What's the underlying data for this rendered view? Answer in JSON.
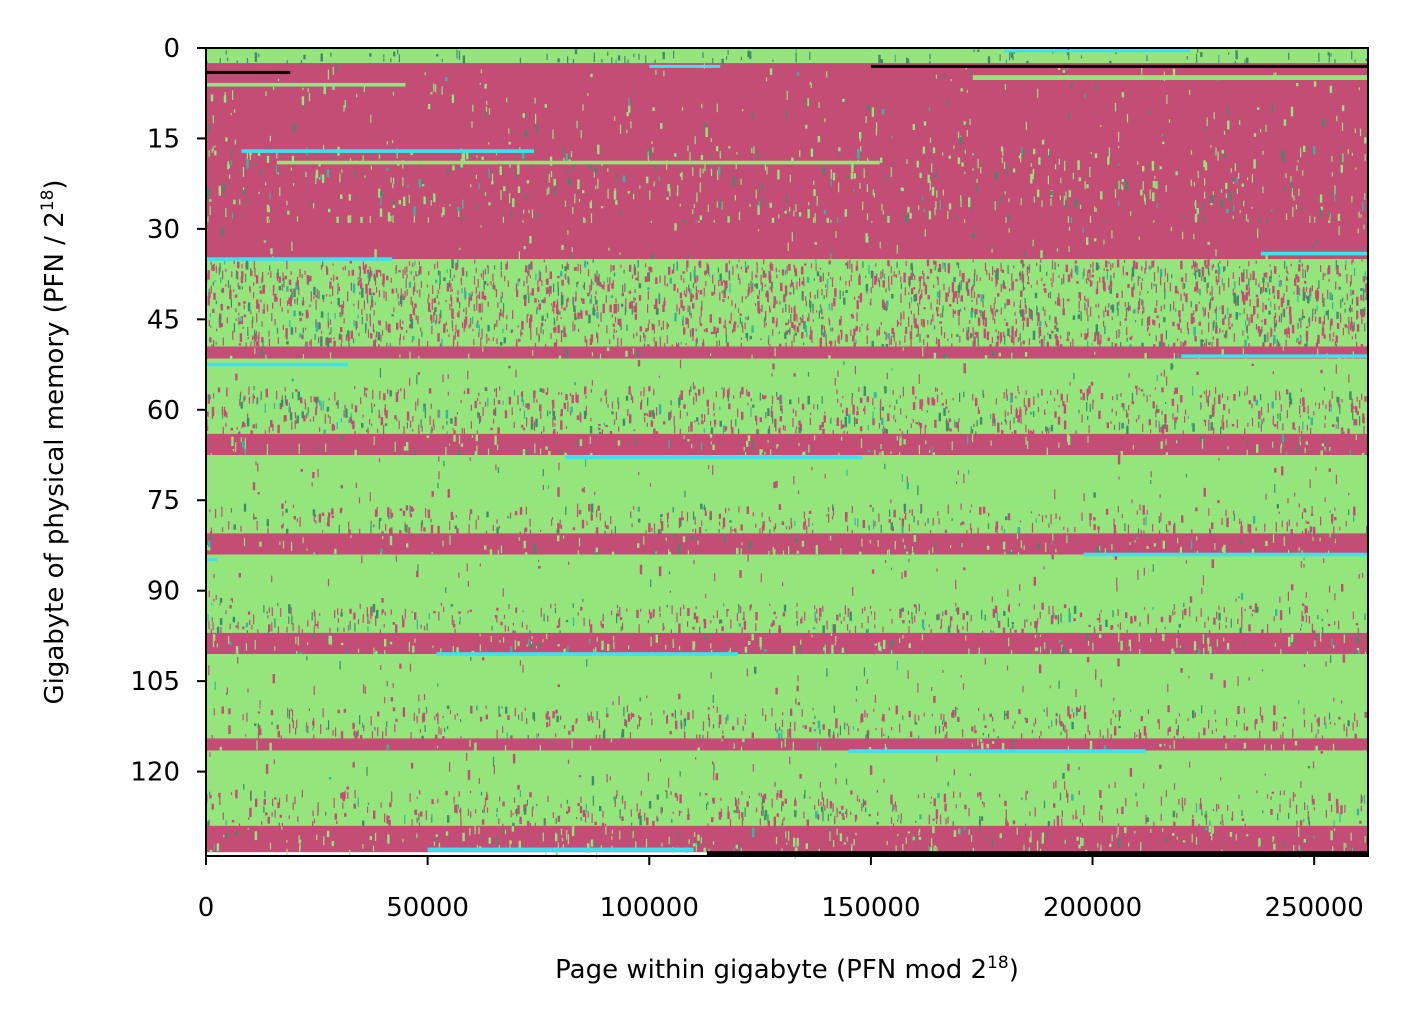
{
  "chart_data": {
    "type": "heatmap",
    "title": "",
    "xlabel": {
      "text": "Page within gigabyte (PFN mod 2",
      "sup": "18",
      "tail": ")"
    },
    "ylabel": {
      "text": "Gigabyte of physical memory (PFN / 2",
      "sup": "18",
      "tail": ")"
    },
    "xlim": [
      0,
      262144
    ],
    "ylim": [
      0,
      134
    ],
    "y_inverted": true,
    "x_ticks": [
      {
        "value": 0,
        "label": "0"
      },
      {
        "value": 50000,
        "label": "50000"
      },
      {
        "value": 100000,
        "label": "100000"
      },
      {
        "value": 150000,
        "label": "150000"
      },
      {
        "value": 200000,
        "label": "200000"
      },
      {
        "value": 250000,
        "label": "250000"
      }
    ],
    "y_ticks": [
      {
        "value": 0,
        "label": "0"
      },
      {
        "value": 15,
        "label": "15"
      },
      {
        "value": 30,
        "label": "30"
      },
      {
        "value": 45,
        "label": "45"
      },
      {
        "value": 60,
        "label": "60"
      },
      {
        "value": 75,
        "label": "75"
      },
      {
        "value": 90,
        "label": "90"
      },
      {
        "value": 105,
        "label": "105"
      },
      {
        "value": 120,
        "label": "120"
      }
    ],
    "grid": false,
    "legend": "none",
    "colors": {
      "free": "#93e57c",
      "used": "#c44d76",
      "special": "#3e8c6b",
      "teal": "#33b8a0",
      "cyan": "#3de2f2",
      "reserved": "#000000"
    },
    "pattern_seed": 1337,
    "bands": [
      {
        "y0": 0,
        "y1": 2.5,
        "base": "free",
        "noise": 0.08,
        "noise_color": "special"
      },
      {
        "y0": 2.5,
        "y1": 5.5,
        "base": "used",
        "noise": 0.02,
        "noise_color": "free"
      },
      {
        "y0": 5.5,
        "y1": 16,
        "base": "used",
        "noise": 0.03,
        "noise_color": "free"
      },
      {
        "y0": 16,
        "y1": 29,
        "base": "used",
        "noise": 0.09,
        "noise_color": "free"
      },
      {
        "y0": 29,
        "y1": 35,
        "base": "used",
        "noise": 0.02,
        "noise_color": "free"
      },
      {
        "y0": 35,
        "y1": 49.5,
        "base": "free",
        "noise": 0.32,
        "noise_color": "used"
      },
      {
        "y0": 49.5,
        "y1": 51.5,
        "base": "used",
        "noise": 0.05,
        "noise_color": "free"
      },
      {
        "y0": 51.5,
        "y1": 56,
        "base": "free",
        "noise": 0.02,
        "noise_color": "used"
      },
      {
        "y0": 56,
        "y1": 64,
        "base": "free",
        "noise": 0.22,
        "noise_color": "used"
      },
      {
        "y0": 64,
        "y1": 67.5,
        "base": "used",
        "noise": 0.08,
        "noise_color": "free"
      },
      {
        "y0": 67.5,
        "y1": 75.5,
        "base": "free",
        "noise": 0.02,
        "noise_color": "used"
      },
      {
        "y0": 75.5,
        "y1": 80.5,
        "base": "free",
        "noise": 0.16,
        "noise_color": "used"
      },
      {
        "y0": 80.5,
        "y1": 84,
        "base": "used",
        "noise": 0.08,
        "noise_color": "free"
      },
      {
        "y0": 84,
        "y1": 92,
        "base": "free",
        "noise": 0.02,
        "noise_color": "used"
      },
      {
        "y0": 92,
        "y1": 97,
        "base": "free",
        "noise": 0.18,
        "noise_color": "used"
      },
      {
        "y0": 97,
        "y1": 100.5,
        "base": "used",
        "noise": 0.1,
        "noise_color": "free"
      },
      {
        "y0": 100.5,
        "y1": 109,
        "base": "free",
        "noise": 0.02,
        "noise_color": "used"
      },
      {
        "y0": 109,
        "y1": 114.5,
        "base": "free",
        "noise": 0.16,
        "noise_color": "used"
      },
      {
        "y0": 114.5,
        "y1": 116.5,
        "base": "used",
        "noise": 0.05,
        "noise_color": "free"
      },
      {
        "y0": 116.5,
        "y1": 123,
        "base": "free",
        "noise": 0.02,
        "noise_color": "used"
      },
      {
        "y0": 123,
        "y1": 129,
        "base": "free",
        "noise": 0.16,
        "noise_color": "used"
      },
      {
        "y0": 129,
        "y1": 133.3,
        "base": "used",
        "noise": 0.1,
        "noise_color": "free"
      }
    ],
    "strips": [
      {
        "y": 0.3,
        "h": 0.25,
        "x0": 180000,
        "x1": 222000,
        "color": "cyan"
      },
      {
        "y": 2.8,
        "h": 0.5,
        "x0": 100000,
        "x1": 116000,
        "color": "cyan"
      },
      {
        "y": 2.8,
        "h": 0.5,
        "x0": 150000,
        "x1": 262144,
        "color": "reserved"
      },
      {
        "y": 3.8,
        "h": 0.5,
        "x0": 0,
        "x1": 19000,
        "color": "reserved"
      },
      {
        "y": 4.5,
        "h": 0.8,
        "x0": 173000,
        "x1": 262144,
        "color": "free"
      },
      {
        "y": 5.8,
        "h": 0.6,
        "x0": 0,
        "x1": 45000,
        "color": "free"
      },
      {
        "y": 16.8,
        "h": 0.6,
        "x0": 8000,
        "x1": 74000,
        "color": "cyan"
      },
      {
        "y": 18.7,
        "h": 0.6,
        "x0": 16000,
        "x1": 152000,
        "color": "free"
      },
      {
        "y": 33.8,
        "h": 0.6,
        "x0": 238000,
        "x1": 262144,
        "color": "cyan"
      },
      {
        "y": 34.7,
        "h": 0.6,
        "x0": 0,
        "x1": 42000,
        "color": "cyan"
      },
      {
        "y": 50.8,
        "h": 0.6,
        "x0": 220000,
        "x1": 262144,
        "color": "cyan"
      },
      {
        "y": 52.2,
        "h": 0.6,
        "x0": 0,
        "x1": 32000,
        "color": "cyan"
      },
      {
        "y": 67.6,
        "h": 0.6,
        "x0": 81000,
        "x1": 148000,
        "color": "cyan"
      },
      {
        "y": 83.7,
        "h": 0.6,
        "x0": 198000,
        "x1": 262144,
        "color": "cyan"
      },
      {
        "y": 84.6,
        "h": 0.5,
        "x0": 0,
        "x1": 2500,
        "color": "cyan"
      },
      {
        "y": 100.2,
        "h": 0.6,
        "x0": 52000,
        "x1": 120000,
        "color": "cyan"
      },
      {
        "y": 116.3,
        "h": 0.6,
        "x0": 145000,
        "x1": 212000,
        "color": "cyan"
      },
      {
        "y": 132.6,
        "h": 0.7,
        "x0": 50000,
        "x1": 110000,
        "color": "cyan"
      },
      {
        "y": 133.2,
        "h": 0.8,
        "x0": 113000,
        "x1": 262144,
        "color": "reserved"
      }
    ]
  }
}
